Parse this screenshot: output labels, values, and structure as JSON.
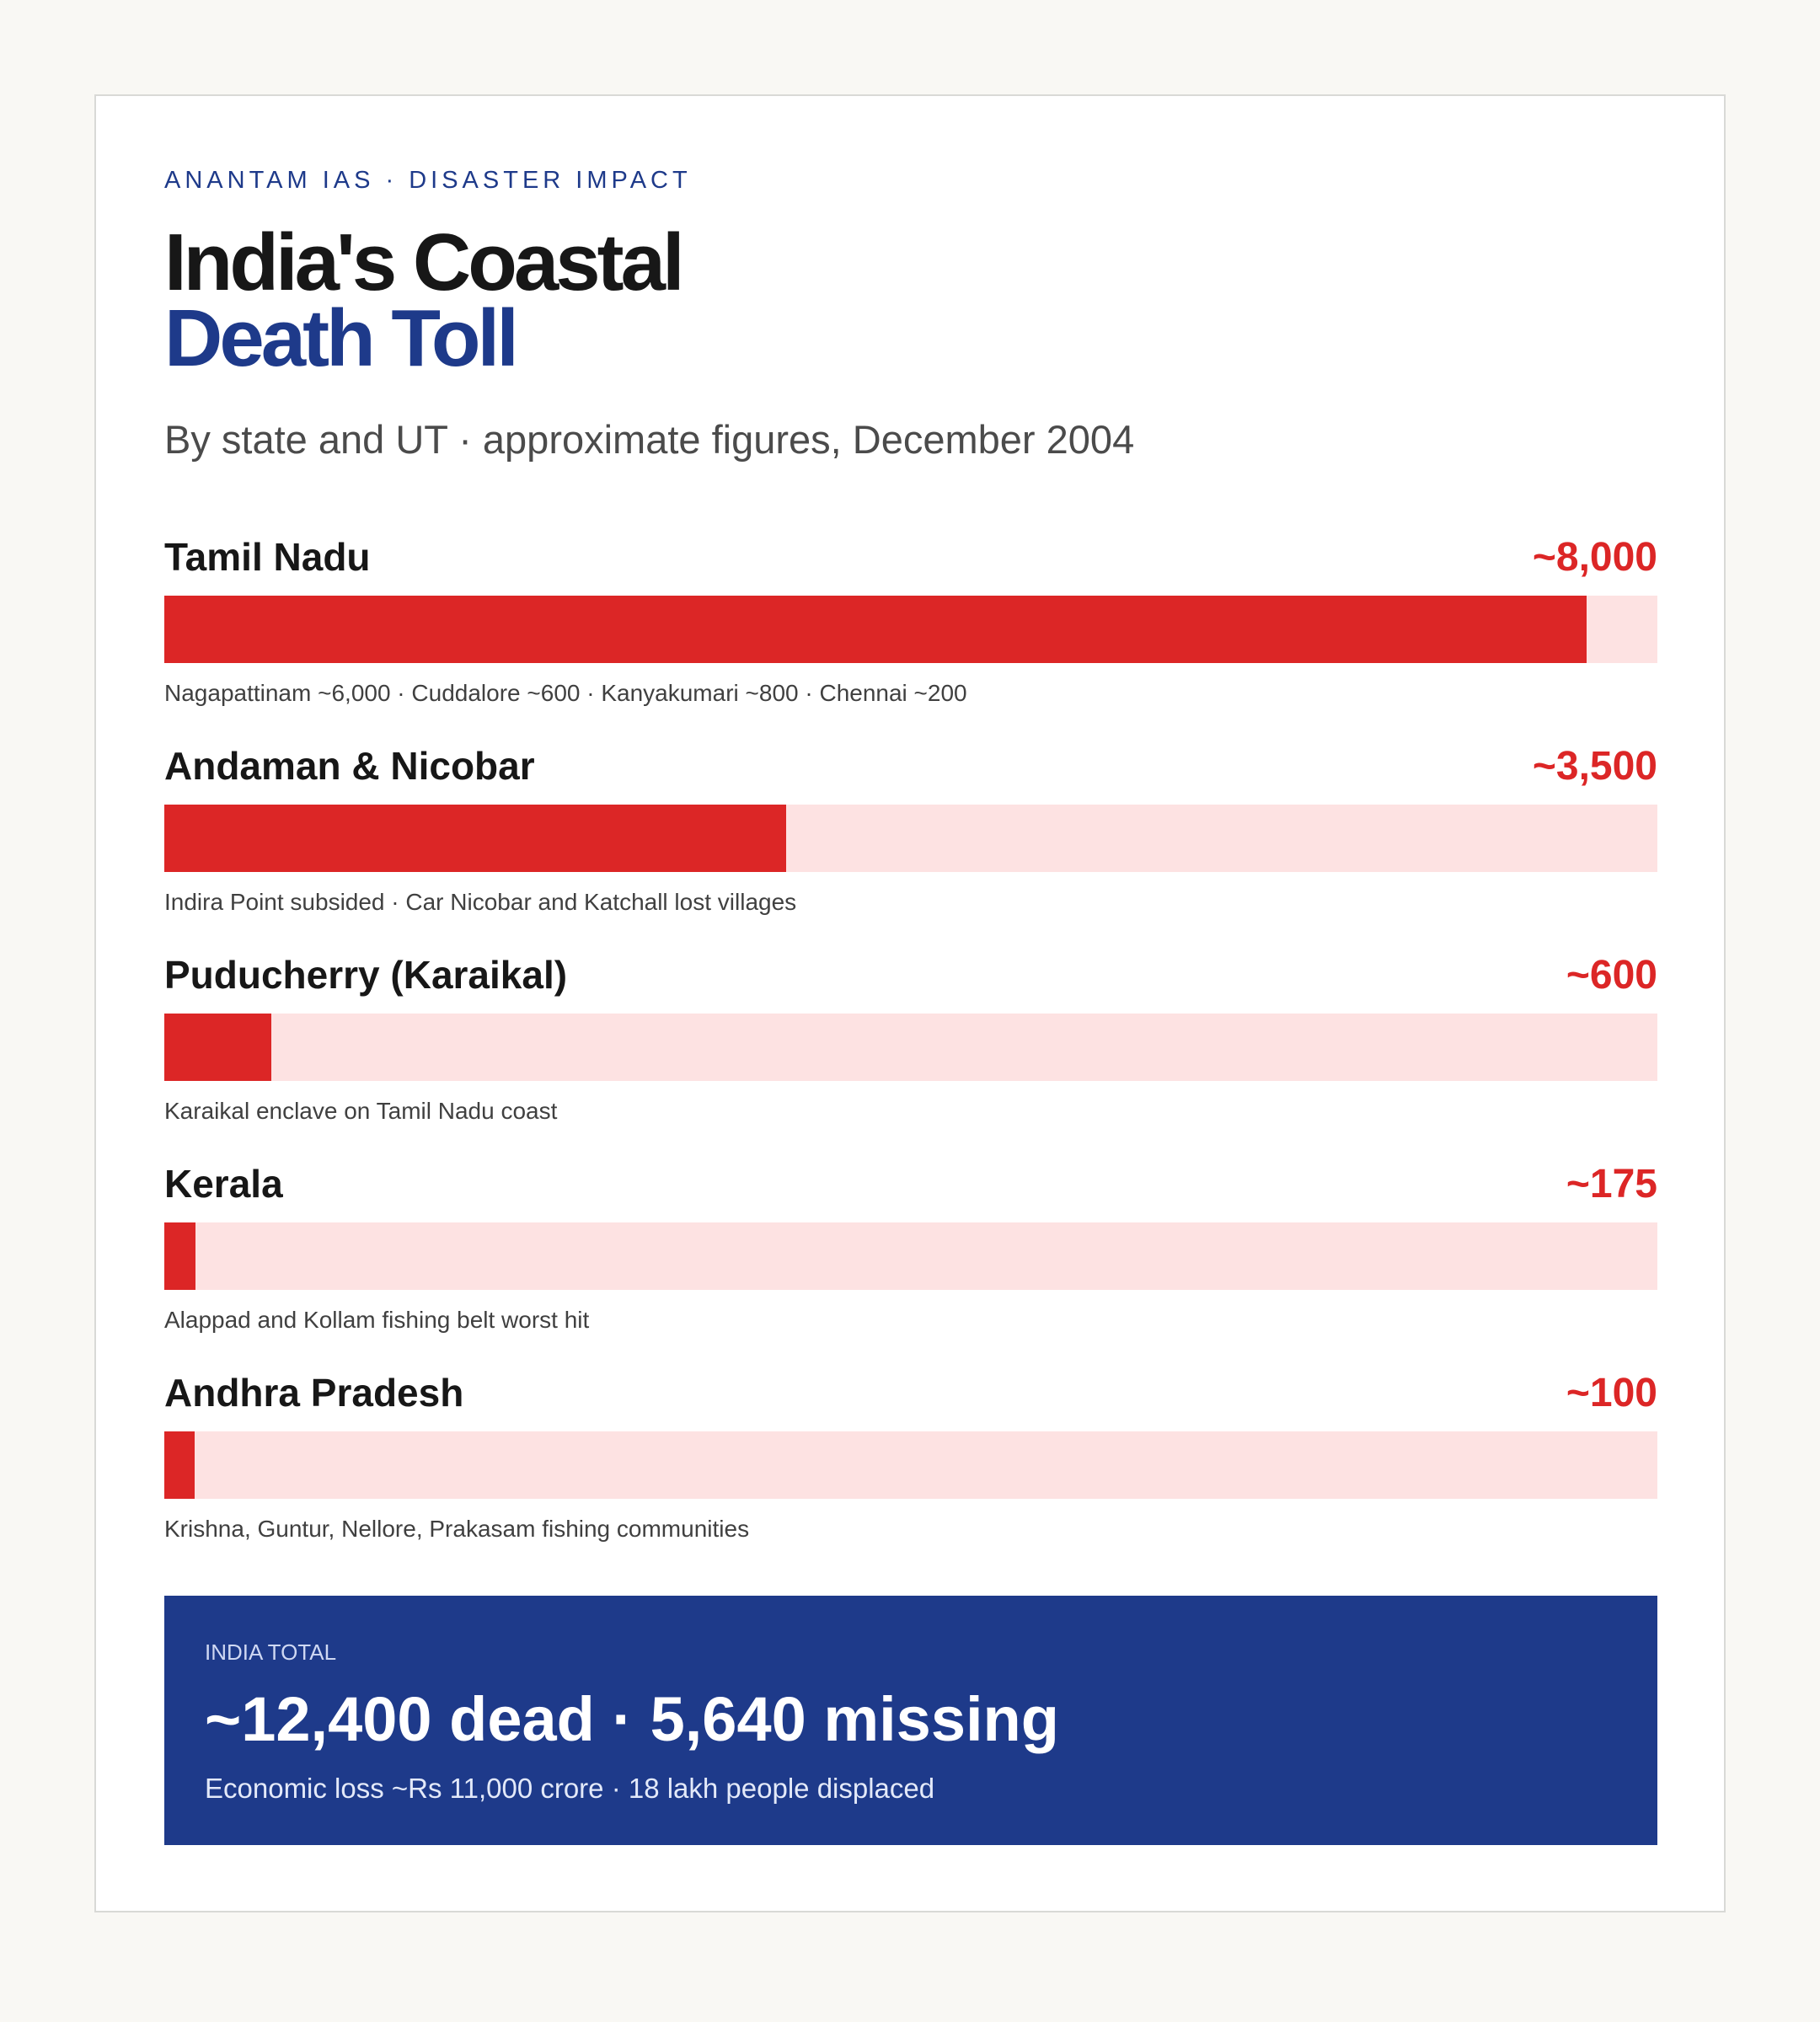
{
  "header": {
    "eyebrow": "ANANTAM IAS · DISASTER IMPACT",
    "title_line1": "India's Coastal",
    "title_line2": "Death Toll",
    "subtitle": "By state and UT · approximate figures, December 2004"
  },
  "chart_data": {
    "type": "bar",
    "orientation": "horizontal",
    "categories": [
      "Tamil Nadu",
      "Andaman & Nicobar",
      "Puducherry (Karaikal)",
      "Kerala",
      "Andhra Pradesh"
    ],
    "values": [
      8000,
      3500,
      600,
      175,
      100
    ],
    "value_labels": [
      "~8,000",
      "~3,500",
      "~600",
      "~175",
      "~100"
    ],
    "notes": [
      "Nagapattinam ~6,000 · Cuddalore ~600 · Kanyakumari ~800 · Chennai ~200",
      "Indira Point subsided · Car Nicobar and Katchall lost villages",
      "Karaikal enclave on Tamil Nadu coast",
      "Alappad and Kollam fishing belt worst hit",
      "Krishna, Guntur, Nellore, Prakasam fishing communities"
    ],
    "xlim": [
      0,
      8400
    ],
    "bar_color": "#dc2626",
    "track_color": "#fde2e2"
  },
  "total": {
    "kicker": "INDIA TOTAL",
    "headline": "~12,400 dead · 5,640 missing",
    "note": "Economic loss ~Rs 11,000 crore · 18 lakh people displaced"
  }
}
